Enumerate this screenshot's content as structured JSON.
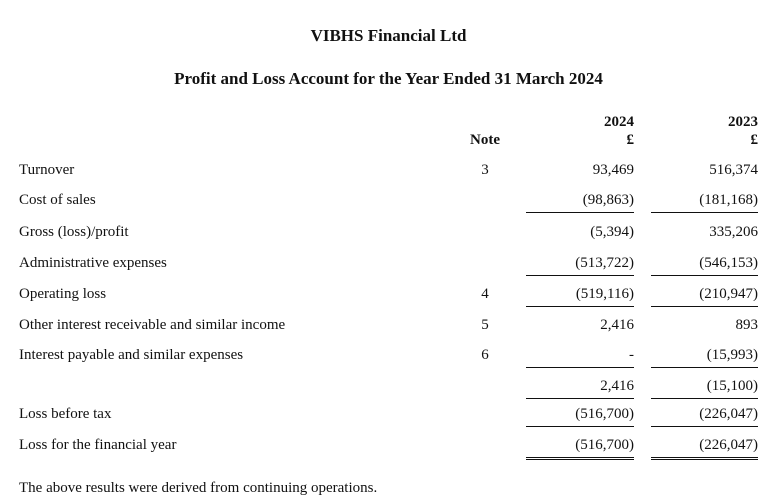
{
  "company": "VIBHS Financial Ltd",
  "title": "Profit and Loss Account for the Year Ended 31 March 2024",
  "headers": {
    "note": "Note",
    "year1": "2024",
    "year2": "2023",
    "currency1": "£",
    "currency2": "£"
  },
  "rows": [
    {
      "label": "Turnover",
      "note": "3",
      "y2024": "93,469",
      "y2023": "516,374"
    },
    {
      "label": "Cost of sales",
      "note": "",
      "y2024": "(98,863)",
      "y2023": "(181,168)"
    },
    {
      "label": "Gross (loss)/profit",
      "note": "",
      "y2024": "(5,394)",
      "y2023": "335,206"
    },
    {
      "label": "Administrative expenses",
      "note": "",
      "y2024": "(513,722)",
      "y2023": "(546,153)"
    },
    {
      "label": "Operating loss",
      "note": "4",
      "y2024": "(519,116)",
      "y2023": "(210,947)"
    },
    {
      "label": "Other interest receivable and similar income",
      "note": "5",
      "y2024": "2,416",
      "y2023": "893"
    },
    {
      "label": "Interest payable and similar expenses",
      "note": "6",
      "y2024": "-",
      "y2023": "(15,993)"
    },
    {
      "label": "",
      "note": "",
      "y2024": "2,416",
      "y2023": "(15,100)"
    },
    {
      "label": "Loss before tax",
      "note": "",
      "y2024": "(516,700)",
      "y2023": "(226,047)"
    },
    {
      "label": "Loss for the financial year",
      "note": "",
      "y2024": "(516,700)",
      "y2023": "(226,047)"
    }
  ],
  "footer": "The above results were derived from continuing operations."
}
